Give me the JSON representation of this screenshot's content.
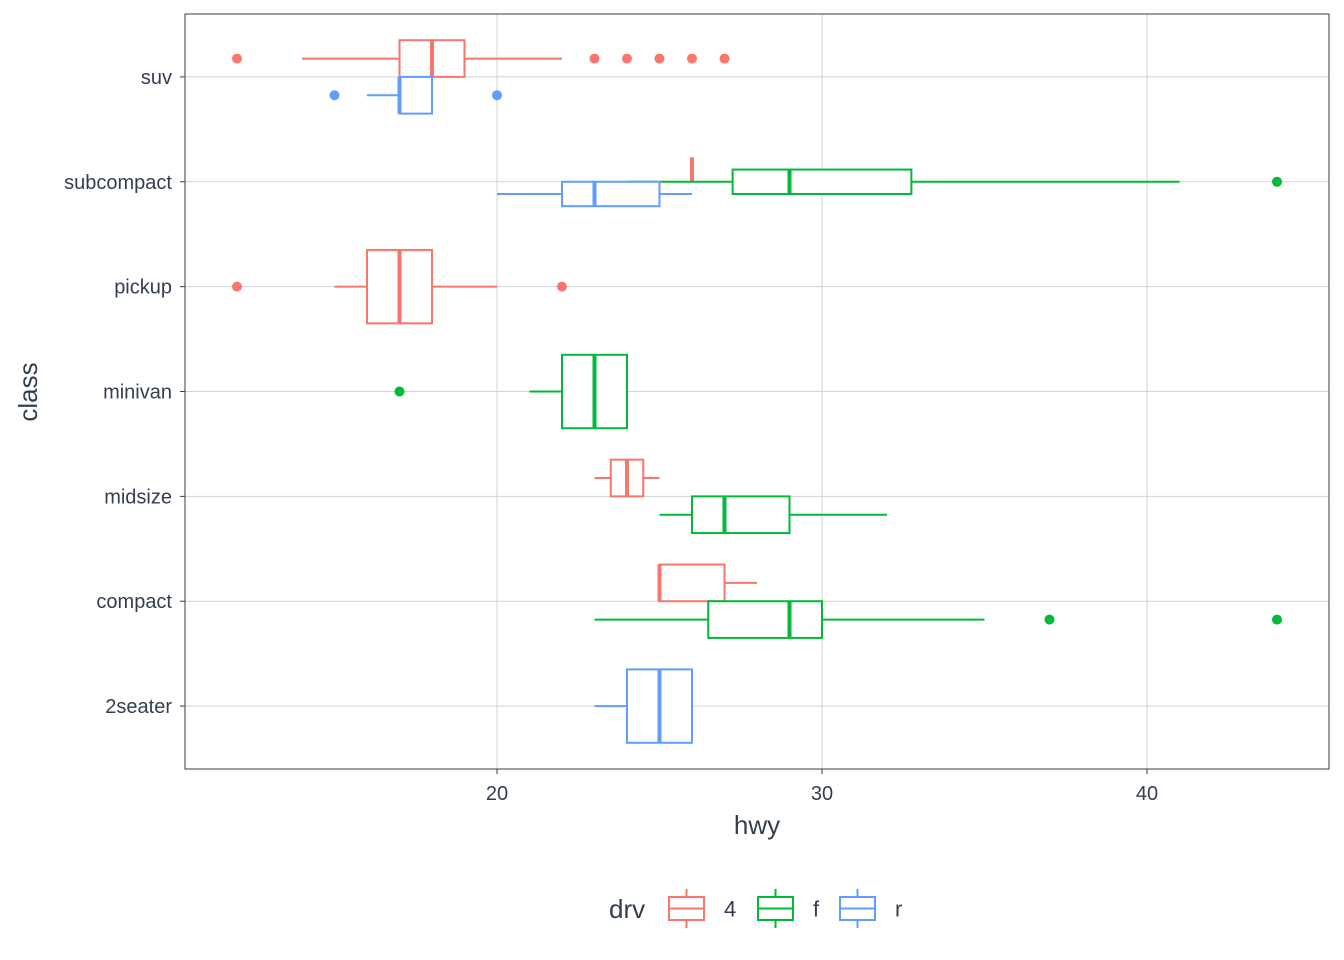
{
  "chart_data": {
    "type": "boxplot",
    "orientation": "horizontal",
    "xlabel": "hwy",
    "ylabel": "class",
    "xlim": [
      10.4,
      45.6
    ],
    "x_ticks": [
      20,
      30,
      40
    ],
    "categories": [
      "2seater",
      "compact",
      "midsize",
      "minivan",
      "pickup",
      "subcompact",
      "suv"
    ],
    "grid": true,
    "legend": {
      "title": "drv",
      "position": "bottom",
      "entries": [
        {
          "key": "4",
          "label": "4",
          "color": "#F8766D"
        },
        {
          "key": "f",
          "label": "f",
          "color": "#00BA38"
        },
        {
          "key": "r",
          "label": "r",
          "color": "#619CFF"
        }
      ]
    },
    "boxes": [
      {
        "class": "2seater",
        "drv": "r",
        "slot": 0,
        "width": 0.7,
        "min": 23,
        "q1": 24,
        "median": 25,
        "q3": 26,
        "max": 26,
        "outliers": []
      },
      {
        "class": "compact",
        "drv": "4",
        "slot": -1,
        "width": 0.35,
        "min": 25,
        "q1": 25,
        "median": 25,
        "q3": 27,
        "max": 28,
        "outliers": []
      },
      {
        "class": "compact",
        "drv": "f",
        "slot": 1,
        "width": 0.35,
        "min": 23,
        "q1": 26.5,
        "median": 29,
        "q3": 30,
        "max": 35,
        "outliers": [
          37,
          44
        ]
      },
      {
        "class": "midsize",
        "drv": "4",
        "slot": -1,
        "width": 0.35,
        "min": 23,
        "q1": 23.5,
        "median": 24,
        "q3": 24.5,
        "max": 25,
        "outliers": []
      },
      {
        "class": "midsize",
        "drv": "f",
        "slot": 1,
        "width": 0.35,
        "min": 25,
        "q1": 26,
        "median": 27,
        "q3": 29,
        "max": 32,
        "outliers": []
      },
      {
        "class": "minivan",
        "drv": "f",
        "slot": 0,
        "width": 0.7,
        "min": 21,
        "q1": 22,
        "median": 23,
        "q3": 24,
        "max": 24,
        "outliers": [
          17
        ]
      },
      {
        "class": "pickup",
        "drv": "4",
        "slot": 0,
        "width": 0.7,
        "min": 15,
        "q1": 16,
        "median": 17,
        "q3": 18,
        "max": 20,
        "outliers": [
          12,
          22
        ]
      },
      {
        "class": "subcompact",
        "drv": "4",
        "slot": -1,
        "width": 0.233,
        "min": 26,
        "q1": 26,
        "median": 26,
        "q3": 26,
        "max": 26,
        "outliers": []
      },
      {
        "class": "subcompact",
        "drv": "f",
        "slot": 0,
        "width": 0.233,
        "min": 24,
        "q1": 27.25,
        "median": 29,
        "q3": 32.75,
        "max": 41,
        "outliers": [
          44
        ]
      },
      {
        "class": "subcompact",
        "drv": "r",
        "slot": 1,
        "width": 0.233,
        "min": 20,
        "q1": 22,
        "median": 23,
        "q3": 25,
        "max": 26,
        "outliers": []
      },
      {
        "class": "suv",
        "drv": "4",
        "slot": -1,
        "width": 0.35,
        "min": 14,
        "q1": 17,
        "median": 18,
        "q3": 19,
        "max": 22,
        "outliers": [
          12,
          23,
          24,
          25,
          26,
          27
        ]
      },
      {
        "class": "suv",
        "drv": "r",
        "slot": 1,
        "width": 0.35,
        "min": 16,
        "q1": 17,
        "median": 17,
        "q3": 18,
        "max": 18,
        "outliers": [
          15,
          20
        ]
      }
    ]
  }
}
